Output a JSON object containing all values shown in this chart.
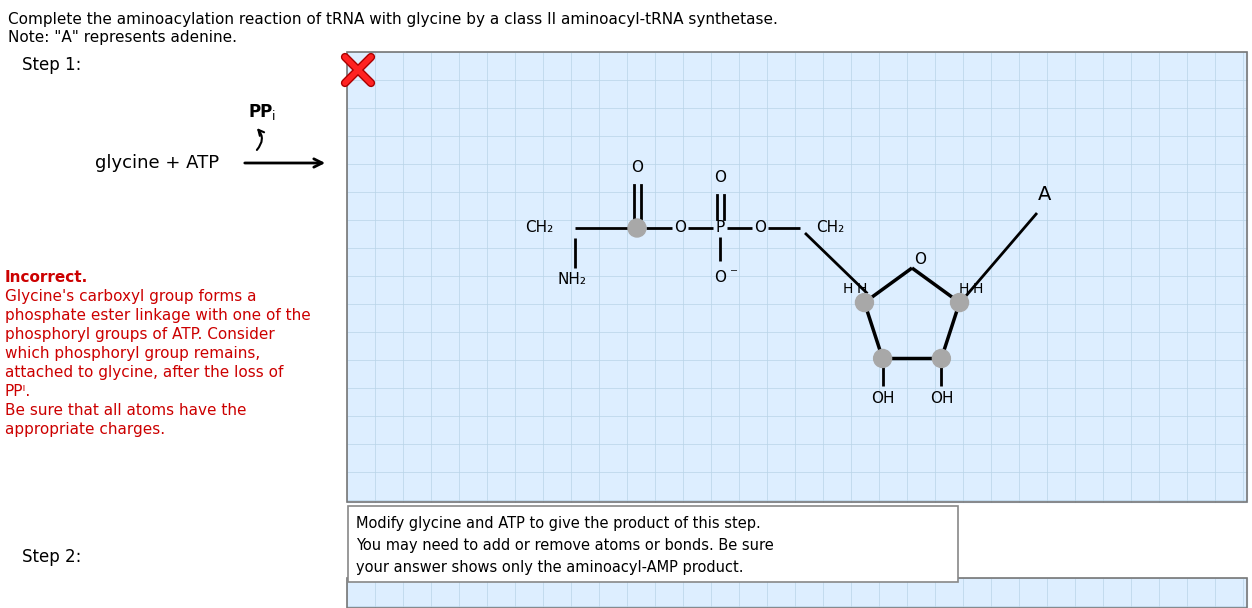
{
  "title_line1": "Complete the aminoacylation reaction of tRNA with glycine by a class II aminoacyl-tRNA synthetase.",
  "title_line2": "Note: \"A\" represents adenine.",
  "step1_label": "Step 1:",
  "step2_label": "Step 2:",
  "reactant_label": "glycine + ATP",
  "byproduct_label": "PPi",
  "incorrect_lines": [
    [
      "Incorrect.",
      true
    ],
    [
      "Glycine's carboxyl group forms a",
      false
    ],
    [
      "phosphate ester linkage with one of the",
      false
    ],
    [
      "phosphoryl groups of ATP. Consider",
      false
    ],
    [
      "which phosphoryl group remains,",
      false
    ],
    [
      "attached to glycine, after the loss of",
      false
    ],
    [
      "PPᴵ.",
      false
    ],
    [
      "Be sure that all atoms have the",
      false
    ],
    [
      "appropriate charges.",
      false
    ]
  ],
  "instruction_text": [
    "Modify glycine and ATP to give the product of this step.",
    "You may need to add or remove atoms or bonds. Be sure",
    "your answer shows only the aminoacyl-AMP product."
  ],
  "bg_color": "#ffffff",
  "grid_color": "#b8d4e8",
  "panel_bg": "#ddeeff",
  "text_color_black": "#000000",
  "text_color_red": "#cc0000",
  "bond_color": "#000000",
  "atom_circle_color": "#a8a8a8"
}
